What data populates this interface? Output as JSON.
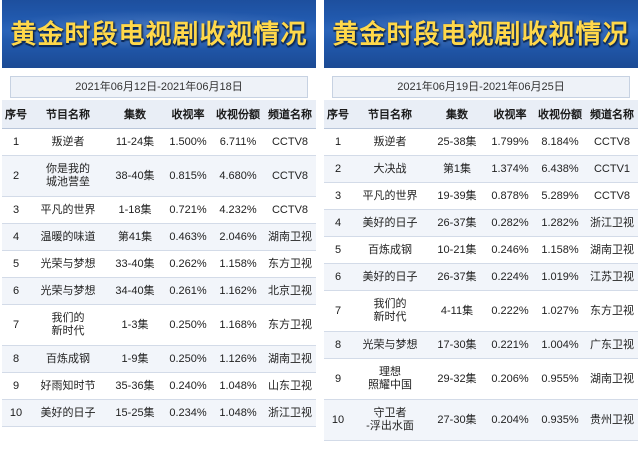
{
  "left": {
    "title": "黄金时段电视剧收视情况",
    "date_range": "2021年06月12日-2021年06月18日",
    "headers": [
      "序号",
      "节目名称",
      "集数",
      "收视率",
      "收视份额",
      "频道名称"
    ],
    "rows": [
      {
        "rank": "1",
        "name": "叛逆者",
        "episodes": "11-24集",
        "rating": "1.500%",
        "share": "6.711%",
        "channel": "CCTV8"
      },
      {
        "rank": "2",
        "name": "你是我的\n城池营垒",
        "episodes": "38-40集",
        "rating": "0.815%",
        "share": "4.680%",
        "channel": "CCTV8"
      },
      {
        "rank": "3",
        "name": "平凡的世界",
        "episodes": "1-18集",
        "rating": "0.721%",
        "share": "4.232%",
        "channel": "CCTV8"
      },
      {
        "rank": "4",
        "name": "温暖的味道",
        "episodes": "第41集",
        "rating": "0.463%",
        "share": "2.046%",
        "channel": "湖南卫视"
      },
      {
        "rank": "5",
        "name": "光荣与梦想",
        "episodes": "33-40集",
        "rating": "0.262%",
        "share": "1.158%",
        "channel": "东方卫视"
      },
      {
        "rank": "6",
        "name": "光荣与梦想",
        "episodes": "34-40集",
        "rating": "0.261%",
        "share": "1.162%",
        "channel": "北京卫视"
      },
      {
        "rank": "7",
        "name": "我们的\n新时代",
        "episodes": "1-3集",
        "rating": "0.250%",
        "share": "1.168%",
        "channel": "东方卫视"
      },
      {
        "rank": "8",
        "name": "百炼成钢",
        "episodes": "1-9集",
        "rating": "0.250%",
        "share": "1.126%",
        "channel": "湖南卫视"
      },
      {
        "rank": "9",
        "name": "好雨知时节",
        "episodes": "35-36集",
        "rating": "0.240%",
        "share": "1.048%",
        "channel": "山东卫视"
      },
      {
        "rank": "10",
        "name": "美好的日子",
        "episodes": "15-25集",
        "rating": "0.234%",
        "share": "1.048%",
        "channel": "浙江卫视"
      }
    ]
  },
  "right": {
    "title": "黄金时段电视剧收视情况",
    "date_range": "2021年06月19日-2021年06月25日",
    "headers": [
      "序号",
      "节目名称",
      "集数",
      "收视率",
      "收视份额",
      "频道名称"
    ],
    "rows": [
      {
        "rank": "1",
        "name": "叛逆者",
        "episodes": "25-38集",
        "rating": "1.799%",
        "share": "8.184%",
        "channel": "CCTV8"
      },
      {
        "rank": "2",
        "name": "大决战",
        "episodes": "第1集",
        "rating": "1.374%",
        "share": "6.438%",
        "channel": "CCTV1"
      },
      {
        "rank": "3",
        "name": "平凡的世界",
        "episodes": "19-39集",
        "rating": "0.878%",
        "share": "5.289%",
        "channel": "CCTV8"
      },
      {
        "rank": "4",
        "name": "美好的日子",
        "episodes": "26-37集",
        "rating": "0.282%",
        "share": "1.282%",
        "channel": "浙江卫视"
      },
      {
        "rank": "5",
        "name": "百炼成钢",
        "episodes": "10-21集",
        "rating": "0.246%",
        "share": "1.158%",
        "channel": "湖南卫视"
      },
      {
        "rank": "6",
        "name": "美好的日子",
        "episodes": "26-37集",
        "rating": "0.224%",
        "share": "1.019%",
        "channel": "江苏卫视"
      },
      {
        "rank": "7",
        "name": "我们的\n新时代",
        "episodes": "4-11集",
        "rating": "0.222%",
        "share": "1.027%",
        "channel": "东方卫视"
      },
      {
        "rank": "8",
        "name": "光荣与梦想",
        "episodes": "17-30集",
        "rating": "0.221%",
        "share": "1.004%",
        "channel": "广东卫视"
      },
      {
        "rank": "9",
        "name": "理想\n照耀中国",
        "episodes": "29-32集",
        "rating": "0.206%",
        "share": "0.955%",
        "channel": "湖南卫视"
      },
      {
        "rank": "10",
        "name": "守卫者\n-浮出水面",
        "episodes": "27-30集",
        "rating": "0.204%",
        "share": "0.935%",
        "channel": "贵州卫视"
      }
    ]
  }
}
